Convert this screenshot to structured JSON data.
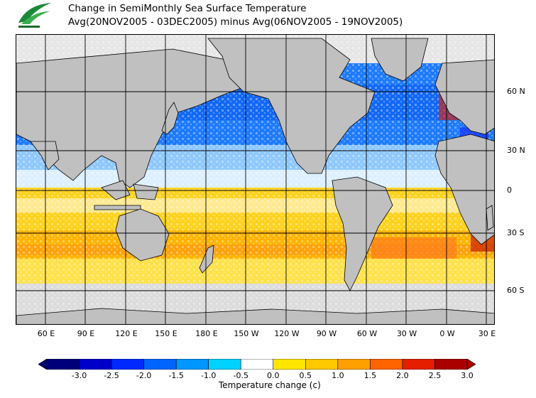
{
  "title_line1": "Change in SemiMonthly Sea Surface Temperature",
  "title_line2": "Avg(20NOV2005 - 03DEC2005) minus Avg(06NOV2005 - 19NOV2005)",
  "lat_labels": [
    "60 N",
    "30 N",
    "0",
    "30 S",
    "60 S"
  ],
  "lon_labels": [
    "60 E",
    "90 E",
    "120 E",
    "150 E",
    "180 E",
    "150 W",
    "120 W",
    "90 W",
    "60 W",
    "30 W",
    "0 W",
    "30 E"
  ],
  "colorbar": {
    "title": "Temperature change  (c)",
    "tick_labels": [
      "-3.0",
      "-2.5",
      "-2.0",
      "-1.5",
      "-1.0",
      "-0.5",
      "0.0",
      "0.5",
      "1.0",
      "1.5",
      "2.0",
      "2.5",
      "3.0"
    ],
    "colors": [
      "#00007a",
      "#0000c8",
      "#0028ff",
      "#0064ff",
      "#0096ff",
      "#00d2ff",
      "#ffffff",
      "#ffe600",
      "#ffc800",
      "#ffa000",
      "#ff6400",
      "#e61e00",
      "#aa0000"
    ]
  },
  "colors": {
    "land": "#c0c0c0",
    "ice": "#e0e0e0",
    "neutral": "#ffffff",
    "cooling": "#0064ff",
    "warming": "#ffc800"
  }
}
